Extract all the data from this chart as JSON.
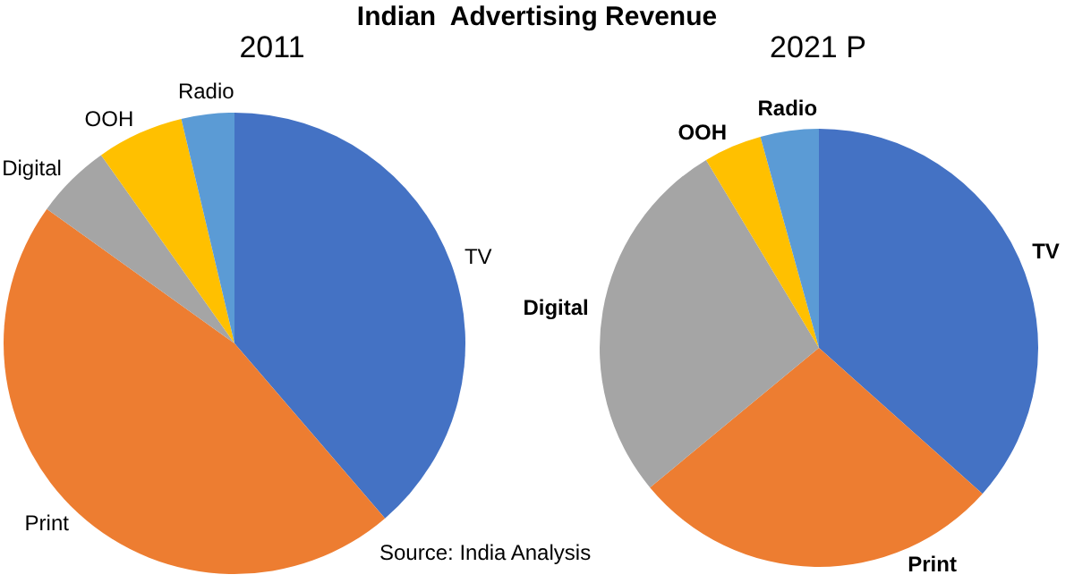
{
  "chart_data": [
    {
      "type": "pie",
      "title": "Indian  Advertising Revenue",
      "subtitle": "2011",
      "categories": [
        "TV",
        "Print",
        "Digital",
        "OOH",
        "Radio"
      ],
      "values": [
        38.7,
        46.2,
        5.3,
        6.1,
        3.7
      ],
      "colors": [
        "#4472c4",
        "#ed7d31",
        "#a5a5a5",
        "#ffc000",
        "#5b9bd5"
      ],
      "legend": false
    },
    {
      "type": "pie",
      "subtitle": "2021 P",
      "categories": [
        "TV",
        "Print",
        "Digital",
        "OOH",
        "Radio"
      ],
      "values": [
        36.6,
        27.4,
        27.4,
        4.3,
        4.3
      ],
      "colors": [
        "#4472c4",
        "#ed7d31",
        "#a5a5a5",
        "#ffc000",
        "#5b9bd5"
      ],
      "legend": false,
      "annotations": [
        "Source: India Analysis"
      ]
    }
  ]
}
